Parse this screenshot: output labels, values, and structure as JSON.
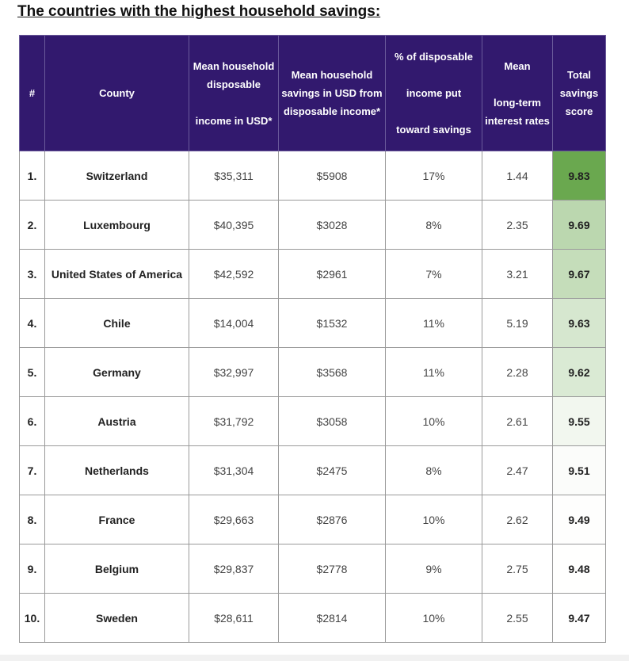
{
  "title": "The countries with the highest household savings:",
  "colors": {
    "header_bg": "#32196e",
    "header_text": "#ffffff",
    "border": "#9a9a9a",
    "score_high": "#6aa84f",
    "score_low": "#ffffff"
  },
  "headers": {
    "rank": [
      "#"
    ],
    "country": [
      "County"
    ],
    "income": [
      "Mean household",
      "disposable",
      "",
      "income in USD*"
    ],
    "savings": [
      "Mean household",
      "savings in USD from",
      "disposable income*"
    ],
    "share": [
      "% of disposable",
      "",
      "income put",
      "",
      "toward savings"
    ],
    "rates": [
      "Mean",
      "",
      "long-term",
      "interest rates"
    ],
    "score": [
      "Total",
      "savings",
      "score"
    ]
  },
  "chart_data": {
    "type": "table",
    "title": "The countries with the highest household savings:",
    "columns": [
      "#",
      "County",
      "Mean household disposable income in USD*",
      "Mean household savings in USD from disposable income*",
      "% of disposable income put toward savings",
      "Mean long-term interest rates",
      "Total savings score"
    ],
    "rows": [
      {
        "rank": "1.",
        "country": "Switzerland",
        "income": "$35,311",
        "savings": "$5908",
        "share": "17%",
        "rate": "1.44",
        "score": "9.83"
      },
      {
        "rank": "2.",
        "country": "Luxembourg",
        "income": "$40,395",
        "savings": "$3028",
        "share": "8%",
        "rate": "2.35",
        "score": "9.69"
      },
      {
        "rank": "3.",
        "country": "United States of America",
        "income": "$42,592",
        "savings": "$2961",
        "share": "7%",
        "rate": "3.21",
        "score": "9.67"
      },
      {
        "rank": "4.",
        "country": "Chile",
        "income": "$14,004",
        "savings": "$1532",
        "share": "11%",
        "rate": "5.19",
        "score": "9.63"
      },
      {
        "rank": "5.",
        "country": "Germany",
        "income": "$32,997",
        "savings": "$3568",
        "share": "11%",
        "rate": "2.28",
        "score": "9.62"
      },
      {
        "rank": "6.",
        "country": "Austria",
        "income": "$31,792",
        "savings": "$3058",
        "share": "10%",
        "rate": "2.61",
        "score": "9.55"
      },
      {
        "rank": "7.",
        "country": "Netherlands",
        "income": "$31,304",
        "savings": "$2475",
        "share": "8%",
        "rate": "2.47",
        "score": "9.51"
      },
      {
        "rank": "8.",
        "country": "France",
        "income": "$29,663",
        "savings": "$2876",
        "share": "10%",
        "rate": "2.62",
        "score": "9.49"
      },
      {
        "rank": "9.",
        "country": "Belgium",
        "income": "$29,837",
        "savings": "$2778",
        "share": "9%",
        "rate": "2.75",
        "score": "9.48"
      },
      {
        "rank": "10.",
        "country": "Sweden",
        "income": "$28,611",
        "savings": "$2814",
        "share": "10%",
        "rate": "2.55",
        "score": "9.47"
      }
    ]
  }
}
